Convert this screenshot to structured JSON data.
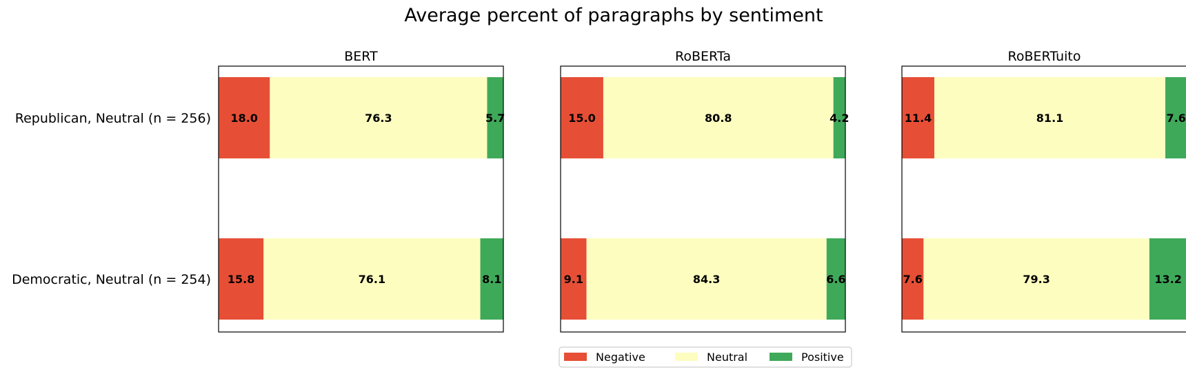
{
  "chart_data": {
    "type": "bar",
    "orientation": "horizontal-stacked",
    "title": "Average percent of paragraphs by sentiment",
    "categories": [
      "Republican, Neutral (n = 256)",
      "Democratic, Neutral (n = 254)"
    ],
    "legend": {
      "placement": "bottom-center",
      "entries": [
        "Negative",
        "Neutral",
        "Positive"
      ]
    },
    "colors": {
      "Negative": "#e64f36",
      "Neutral": "#fdfdc0",
      "Positive": "#3fa95a"
    },
    "xlim": [
      0,
      100
    ],
    "grid": false,
    "panels": [
      {
        "title": "BERT",
        "series": [
          {
            "name": "Negative",
            "values": [
              18.0,
              15.8
            ]
          },
          {
            "name": "Neutral",
            "values": [
              76.3,
              76.1
            ]
          },
          {
            "name": "Positive",
            "values": [
              5.7,
              8.1
            ]
          }
        ]
      },
      {
        "title": "RoBERTa",
        "series": [
          {
            "name": "Negative",
            "values": [
              15.0,
              9.1
            ]
          },
          {
            "name": "Neutral",
            "values": [
              80.8,
              84.3
            ]
          },
          {
            "name": "Positive",
            "values": [
              4.2,
              6.6
            ]
          }
        ]
      },
      {
        "title": "RoBERTuito",
        "series": [
          {
            "name": "Negative",
            "values": [
              11.4,
              7.6
            ]
          },
          {
            "name": "Neutral",
            "values": [
              81.1,
              79.3
            ]
          },
          {
            "name": "Positive",
            "values": [
              7.6,
              13.2
            ]
          }
        ]
      }
    ]
  }
}
